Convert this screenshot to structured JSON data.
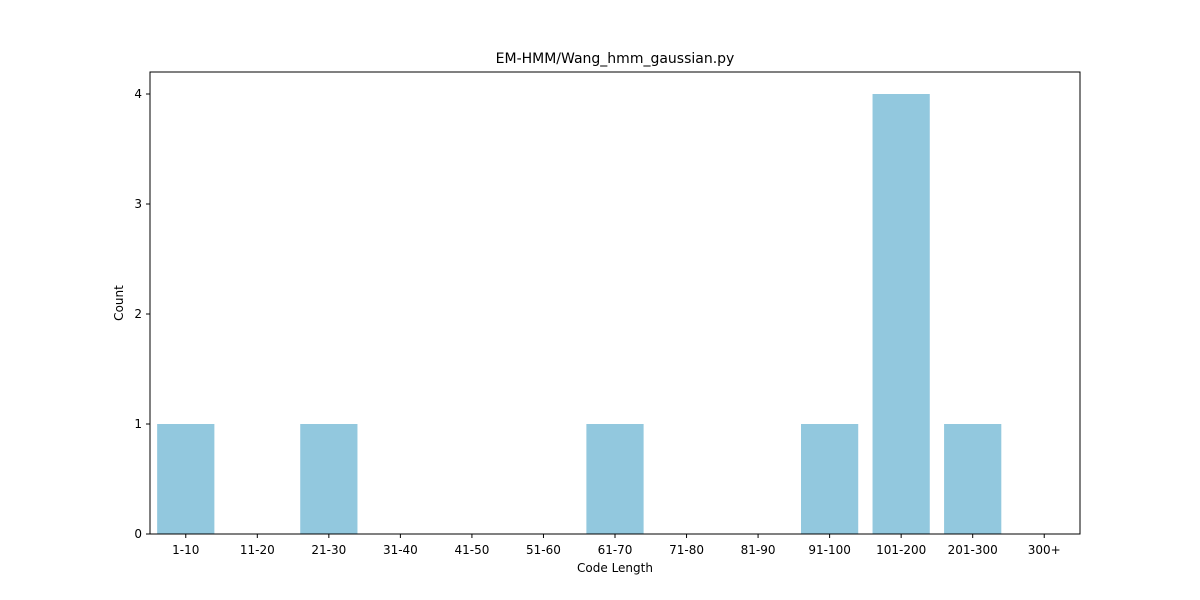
{
  "chart_data": {
    "type": "bar",
    "title": "EM-HMM/Wang_hmm_gaussian.py",
    "xlabel": "Code Length",
    "ylabel": "Count",
    "categories": [
      "1-10",
      "11-20",
      "21-30",
      "31-40",
      "41-50",
      "51-60",
      "61-70",
      "71-80",
      "81-90",
      "91-100",
      "101-200",
      "201-300",
      "300+"
    ],
    "values": [
      1,
      0,
      1,
      0,
      0,
      0,
      1,
      0,
      0,
      1,
      4,
      1,
      0
    ],
    "ylim": [
      0,
      4.2
    ],
    "yticks": [
      0,
      1,
      2,
      3,
      4
    ],
    "grid": false,
    "bar_color": "#92c8de"
  }
}
